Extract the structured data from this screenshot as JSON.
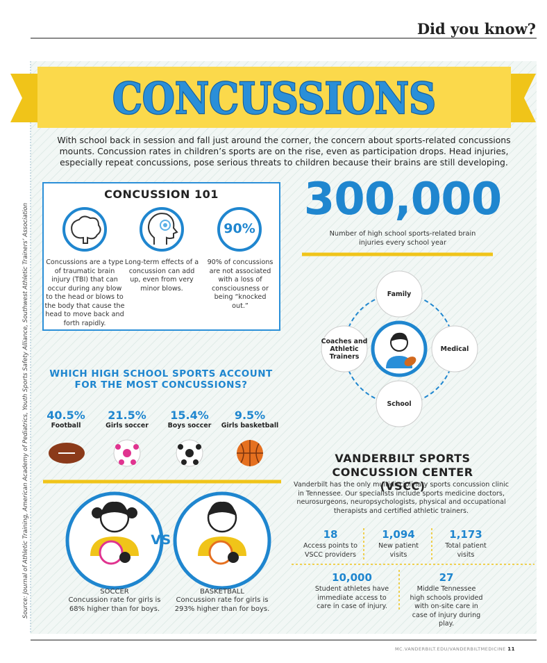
{
  "header": {
    "kicker": "Did you know?"
  },
  "title": "CONCUSSIONS",
  "intro": "With school back in session and fall just around the corner, the concern about sports-related concussions mounts. Concussion rates in children’s sports are on the rise, even as participation drops. Head injuries, especially repeat concussions, pose serious threats to children because their brains are still developing.",
  "concussion_101": {
    "title": "CONCUSSION 101",
    "icon_label": "90%",
    "items": [
      "Concussions are a type of traumatic brain injury (TBI) that can occur during any blow to the head or blows to the body that cause the head to move back and forth rapidly.",
      "Long-term effects of a concussion can add up, even from very minor blows.",
      "90% of concussions are not associated with a loss of consciousness or being “knocked out.”"
    ]
  },
  "statistic": {
    "value": "300,000",
    "caption": "Number of high school sports-related brain injuries every school year"
  },
  "care_team": {
    "nodes": [
      "Family",
      "Coaches and Athletic Trainers",
      "Medical",
      "School"
    ]
  },
  "sports": {
    "title": "WHICH HIGH SCHOOL SPORTS ACCOUNT FOR THE MOST CONCUSSIONS?",
    "items": [
      {
        "percent": "40.5%",
        "label": "Football"
      },
      {
        "percent": "21.5%",
        "label": "Girls soccer"
      },
      {
        "percent": "15.4%",
        "label": "Boys soccer"
      },
      {
        "percent": "9.5%",
        "label": "Girls basketball"
      }
    ]
  },
  "comparison": {
    "vs": "VS",
    "items": [
      {
        "sport": "SOCCER",
        "text": "Concussion rate for girls is 68% higher than for boys."
      },
      {
        "sport": "BASKETBALL",
        "text": "Concussion rate for girls is 293% higher than for boys."
      }
    ]
  },
  "vscc": {
    "title": "VANDERBILT SPORTS CONCUSSION CENTER (VSCC)",
    "description": "Vanderbilt has the only multidisciplinary sports concussion clinic in Tennessee. Our specialists include sports medicine doctors, neurosurgeons, neuropsychologists, physical and occupational therapists and certified athletic trainers.",
    "stats": [
      {
        "value": "18",
        "label": "Access points to VSCC providers"
      },
      {
        "value": "1,094",
        "label": "New patient visits"
      },
      {
        "value": "1,173",
        "label": "Total patient visits"
      },
      {
        "value": "10,000",
        "label": "Student athletes have immediate access to care in case of injury."
      },
      {
        "value": "27",
        "label": "Middle Tennessee high schools provided with on-site care in case of injury during play."
      }
    ]
  },
  "source": "Source: Journal of Athletic Training, American Academy of Pediatrics, Youth Sports Safety Alliance, Southwest Athletic Trainers’ Association",
  "footer": {
    "url": "MC.VANDERBILT.EDU/VANDERBILTMEDICINE",
    "page": "11"
  }
}
